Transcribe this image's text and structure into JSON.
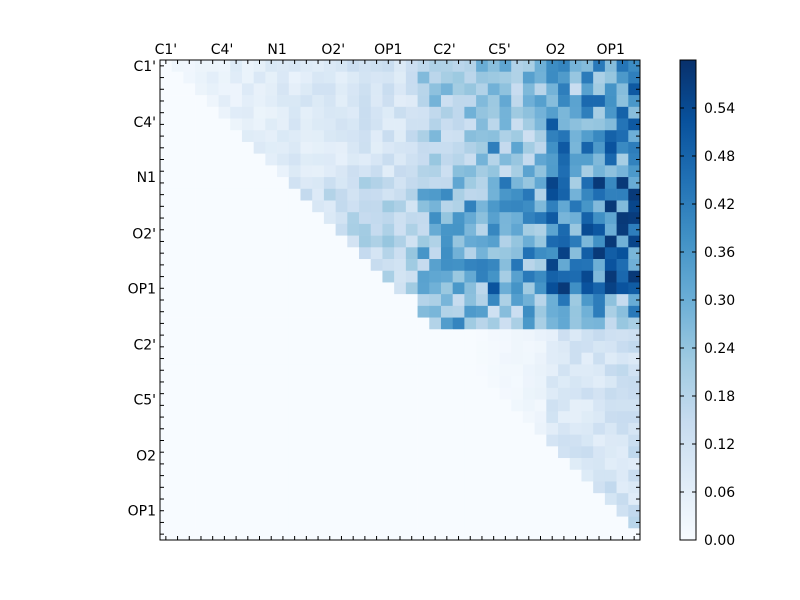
{
  "chart_data": {
    "type": "heatmap",
    "title": "",
    "xlabel": "",
    "ylabel": "",
    "n": 41,
    "x_tick_labels": [
      "C1'",
      "C4'",
      "N1",
      "O2'",
      "OP1",
      "C2'",
      "C5'",
      "O2",
      "OP1"
    ],
    "y_tick_labels": [
      "C1'",
      "C4'",
      "N1",
      "O2'",
      "OP1",
      "C2'",
      "C5'",
      "O2",
      "OP1"
    ],
    "tick_positions": [
      0.5,
      5.3,
      10,
      14.8,
      19.5,
      24.3,
      29,
      33.8,
      38.5
    ],
    "colorbar": {
      "range": [
        0.0,
        0.6
      ],
      "ticks": [
        "0.00",
        "0.06",
        "0.12",
        "0.18",
        "0.24",
        "0.30",
        "0.36",
        "0.42",
        "0.48",
        "0.54"
      ],
      "tick_values": [
        0.0,
        0.06,
        0.12,
        0.18,
        0.24,
        0.3,
        0.36,
        0.42,
        0.48,
        0.54
      ],
      "colormap": "Blues"
    },
    "matrix_note": "upper triangle only; lower triangle is 0",
    "hotspot_rows": [
      {
        "row": 19,
        "cols": [
          22,
          25,
          28,
          35,
          36,
          37,
          38,
          39,
          40
        ],
        "values": [
          0.33,
          0.36,
          0.52,
          0.38,
          0.52,
          0.48,
          0.56,
          0.52,
          0.5
        ]
      },
      {
        "row": 17,
        "cols": [
          28,
          38,
          39
        ],
        "values": [
          0.4,
          0.52,
          0.46
        ]
      },
      {
        "row": 7,
        "cols": [
          28,
          38
        ],
        "values": [
          0.42,
          0.52
        ]
      }
    ]
  }
}
